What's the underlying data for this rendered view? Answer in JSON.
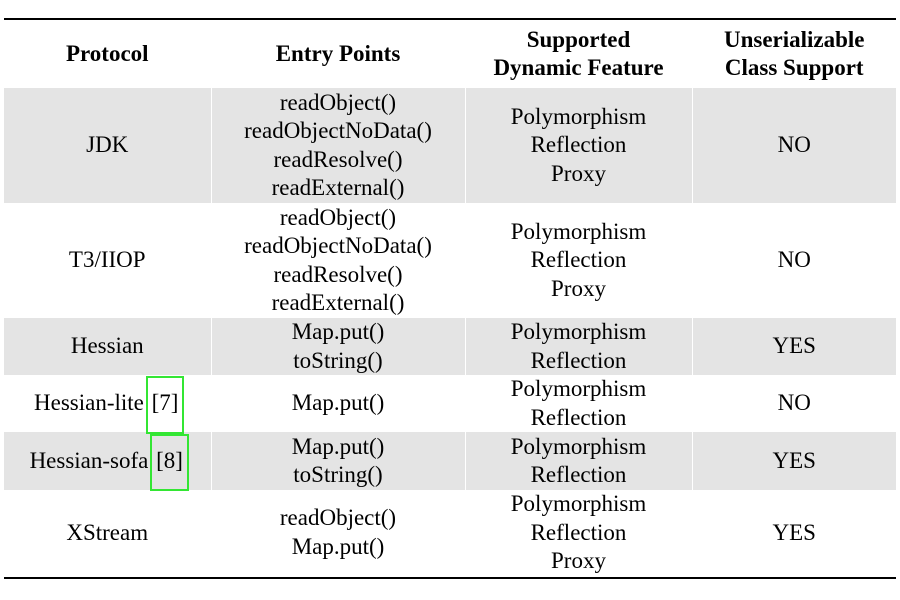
{
  "table": {
    "headers": {
      "protocol": "Protocol",
      "entry_points": "Entry Points",
      "dynamic_feature_line1": "Supported",
      "dynamic_feature_line2": "Dynamic Feature",
      "unserializable_line1": "Unserializable",
      "unserializable_line2": "Class Support"
    },
    "rows": [
      {
        "protocol": "JDK",
        "entry_points": [
          "readObject()",
          "readObjectNoData()",
          "readResolve()",
          "readExternal()"
        ],
        "features": [
          "Polymorphism",
          "Reflection",
          "Proxy"
        ],
        "support": "NO"
      },
      {
        "protocol": "T3/IIOP",
        "entry_points": [
          "readObject()",
          "readObjectNoData()",
          "readResolve()",
          "readExternal()"
        ],
        "features": [
          "Polymorphism",
          "Reflection",
          "Proxy"
        ],
        "support": "NO"
      },
      {
        "protocol": "Hessian",
        "entry_points": [
          "Map.put()",
          "toString()"
        ],
        "features": [
          "Polymorphism",
          "Reflection"
        ],
        "support": "YES"
      },
      {
        "protocol": "Hessian-lite",
        "citation": "[7]",
        "entry_points": [
          "Map.put()"
        ],
        "features": [
          "Polymorphism",
          "Reflection"
        ],
        "support": "NO"
      },
      {
        "protocol": "Hessian-sofa",
        "citation": "[8]",
        "entry_points": [
          "Map.put()",
          "toString()"
        ],
        "features": [
          "Polymorphism",
          "Reflection"
        ],
        "support": "YES"
      },
      {
        "protocol": "XStream",
        "entry_points": [
          "readObject()",
          "Map.put()"
        ],
        "features": [
          "Polymorphism",
          "Reflection",
          "Proxy"
        ],
        "support": "YES"
      }
    ]
  },
  "highlight_color": "#33e633",
  "row_shade_color": "#e4e4e4"
}
